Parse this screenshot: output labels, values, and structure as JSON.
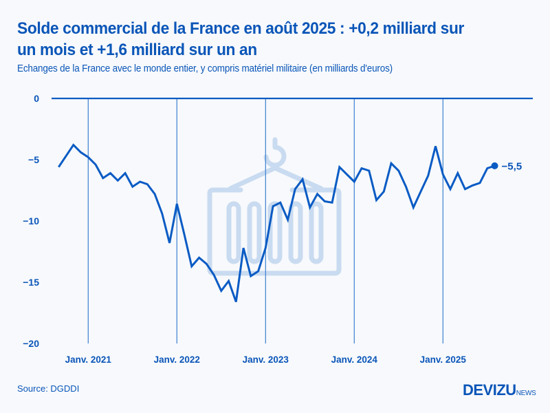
{
  "header": {
    "title_line1": "Solde commercial de la France en août 2025 : +0,2 milliard sur",
    "title_line2": "un mois et +1,6 milliard sur un an",
    "subtitle": "Echanges de la France avec le monde entier, y compris matériel militaire (en milliards d'euros)"
  },
  "footer": {
    "source": "Source: DGDDI",
    "logo_main": "DEVIZU",
    "logo_suffix": "NEWS"
  },
  "colors": {
    "primary": "#0a55b8",
    "line": "#0a5bc4",
    "grid": "#3b7fd0",
    "watermark": "#c9dbf0",
    "background": "#f7f9fc"
  },
  "watermark_icon": "container-crane-icon",
  "chart_data": {
    "type": "line",
    "title": "Solde commercial de la France en août 2025 : +0,2 milliard sur un mois et +1,6 milliard sur un an",
    "subtitle": "Echanges de la France avec le monde entier, y compris matériel militaire (en milliards d'euros)",
    "xlabel": "",
    "ylabel": "",
    "ylim": [
      -20,
      0
    ],
    "yticks": [
      0,
      -5,
      -10,
      -15,
      -20
    ],
    "ytick_labels": [
      "0",
      "−5",
      "−10",
      "−15",
      "−20"
    ],
    "xticks": [
      {
        "label": "Janv. 2021",
        "index": 4
      },
      {
        "label": "Janv. 2022",
        "index": 16
      },
      {
        "label": "Janv. 2023",
        "index": 28
      },
      {
        "label": "Janv. 2024",
        "index": 40
      },
      {
        "label": "Janv. 2025",
        "index": 52
      }
    ],
    "x_start": "2020-09",
    "x_end": "2025-08",
    "frequency": "monthly",
    "grid": "vertical at January ticks",
    "series": [
      {
        "name": "Solde commercial",
        "values": [
          -5.6,
          -4.7,
          -3.8,
          -4.4,
          -4.8,
          -5.4,
          -6.5,
          -6.1,
          -6.7,
          -6.1,
          -7.2,
          -6.8,
          -7.0,
          -7.8,
          -9.4,
          -11.8,
          -8.6,
          -11.1,
          -13.7,
          -13.0,
          -13.5,
          -14.4,
          -15.7,
          -14.9,
          -16.6,
          -12.2,
          -14.5,
          -14.1,
          -12.2,
          -8.8,
          -8.5,
          -9.9,
          -7.4,
          -6.6,
          -8.9,
          -7.8,
          -8.4,
          -8.5,
          -5.6,
          -6.2,
          -6.8,
          -5.7,
          -5.9,
          -8.3,
          -7.6,
          -5.3,
          -5.9,
          -7.2,
          -8.9,
          -7.6,
          -6.3,
          -3.9,
          -6.2,
          -7.4,
          -6.1,
          -7.4,
          -7.1,
          -6.9,
          -5.7,
          -5.5
        ]
      }
    ],
    "annotations": [
      {
        "label": "−5,5",
        "index": 59,
        "value": -5.5
      }
    ]
  }
}
